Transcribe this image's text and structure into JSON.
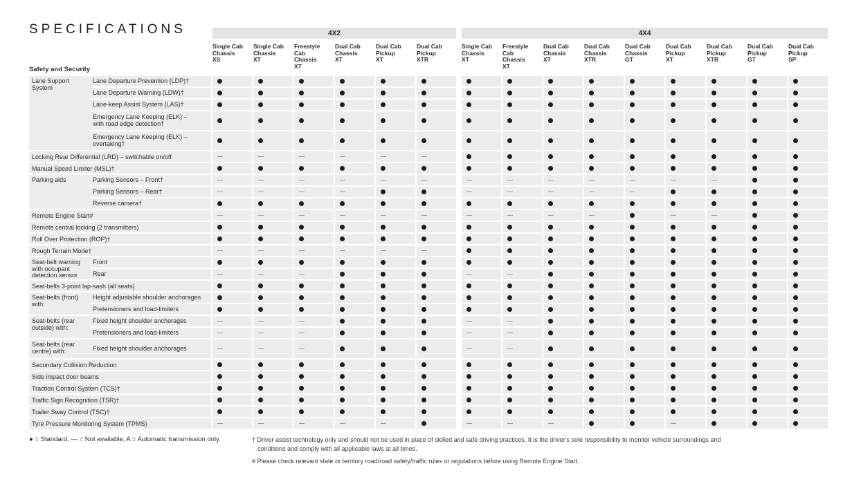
{
  "title": "SPECIFICATIONS",
  "section": "Safety and Security",
  "column_groups": [
    {
      "label": "4X2",
      "span": 6
    },
    {
      "label": "4X4",
      "span": 9
    }
  ],
  "columns": [
    "Single Cab\nChassis\nXS",
    "Single Cab\nChassis\nXT",
    "Freestyle\nCab\nChassis\nXT",
    "Dual Cab\nChassis\nXT",
    "Dual Cab\nPickup\nXT",
    "Dual Cab\nPickup\nXTR",
    "Single Cab\nChassis\nXT",
    "Freestyle\nCab\nChassis\nXT",
    "Dual Cab\nChassis\nXT",
    "Dual Cab\nChassis\nXTR",
    "Dual Cab\nChassis\nGT",
    "Dual Cab\nPickup\nXT",
    "Dual Cab\nPickup\nXTR",
    "Dual Cab\nPickup\nGT",
    "Dual Cab\nPickup\nSP"
  ],
  "symbols": {
    "standard": "●",
    "not_available": "—"
  },
  "colors": {
    "row_bg": "#ececec",
    "header_bar_bg": "#e3e3e3",
    "dot": "#1d1d1d",
    "dash": "#979797"
  },
  "groups": [
    {
      "label": "Lane Support\nSystem",
      "rows": [
        {
          "label": "Lane Departure Prevention (LDP)†",
          "v": "SSSSSSSSSSSSSSS"
        },
        {
          "label": "Lane Departure Warning (LDW)†",
          "v": "SSSSSSSSSSSSSSS"
        },
        {
          "label": "Lane-keep Assist System (LAS)†",
          "v": "SSSSSSSSSSSSSSS"
        },
        {
          "label": "Emergency Lane Keeping (ELK) –\nwith road edge detection†",
          "v": "SSSSSSSSSSSSSSS",
          "tall": true
        },
        {
          "label": "Emergency Lane Keeping (ELK) –\novertaking†",
          "v": "SSSSSSSSSSSSSSS",
          "tall": true
        }
      ]
    },
    {
      "label": null,
      "rows": [
        {
          "label": "Locking Rear Differential (LRD) – switchable on/off",
          "v": "NNNNNNSSSSSSSSS"
        }
      ]
    },
    {
      "label": null,
      "rows": [
        {
          "label": "Manual Speed Limiter (MSL)†",
          "v": "SSSSSSSSSSSSSSS"
        }
      ]
    },
    {
      "label": "Parking aids",
      "rows": [
        {
          "label": "Parking Sensors – Front†",
          "v": "NNNNNNNNNNNNNSS"
        },
        {
          "label": "Parking Sensors – Rear†",
          "v": "NNNNSSNNNNNSSSS"
        },
        {
          "label": "Reverse camera†",
          "v": "SSSSSSSSSSSSSSS"
        }
      ]
    },
    {
      "label": null,
      "rows": [
        {
          "label": "Remote Engine Start#",
          "v": "NNNNNNNNNNSNNSS"
        }
      ]
    },
    {
      "label": null,
      "rows": [
        {
          "label": "Remote central locking (2 transmitters)",
          "v": "SSSSSSSSSSSSSSS"
        }
      ]
    },
    {
      "label": null,
      "rows": [
        {
          "label": "Roll Over Protection (ROP)†",
          "v": "SSSSSSSSSSSSSSS"
        }
      ]
    },
    {
      "label": null,
      "rows": [
        {
          "label": "Rough Terrain Mode†",
          "v": "NNNNNNSSSSSSSSS"
        }
      ]
    },
    {
      "label": "Seat-belt warning\nwith occupant\ndetection sensor",
      "rows": [
        {
          "label": "Front",
          "v": "SSSSSSSSSSSSSSS"
        },
        {
          "label": "Rear",
          "v": "NNNSSSNNSSSSSSS"
        }
      ]
    },
    {
      "label": null,
      "rows": [
        {
          "label": "Seat-belts 3-point lap-sash (all seats)",
          "v": "SSSSSSSSSSSSSSS"
        }
      ]
    },
    {
      "label": "Seat-belts (front)\nwith:",
      "rows": [
        {
          "label": "Height adjustable shoulder anchorages",
          "v": "SSSSSSSSSSSSSSS"
        },
        {
          "label": "Pretensioners and load-limiters",
          "v": "SSSSSSSSSSSSSSS"
        }
      ]
    },
    {
      "label": "Seat-belts (rear\noutside) with:",
      "rows": [
        {
          "label": "Fixed height shoulder anchorages",
          "v": "NNNSSSNNSSSSSSS"
        },
        {
          "label": "Pretensioners and load-limiters",
          "v": "NNNSSSNNSSSSSSS"
        }
      ]
    },
    {
      "label": "Seat-belts (rear\ncentre) with:",
      "rows": [
        {
          "label": "Fixed height shoulder anchorages",
          "v": "NNNSSSNNSSSSSSS",
          "tall": true
        }
      ]
    },
    {
      "label": null,
      "rows": [
        {
          "label": "Secondary Collision Reduction",
          "v": "SSSSSSSSSSSSSSS"
        }
      ]
    },
    {
      "label": null,
      "rows": [
        {
          "label": "Side impact door beams",
          "v": "SSSSSSSSSSSSSSS"
        }
      ]
    },
    {
      "label": null,
      "rows": [
        {
          "label": "Traction Control System (TCS)†",
          "v": "SSSSSSSSSSSSSSS"
        }
      ]
    },
    {
      "label": null,
      "rows": [
        {
          "label": "Traffic Sign Recognition (TSR)†",
          "v": "SSSSSSSSSSSSSSS"
        }
      ]
    },
    {
      "label": null,
      "rows": [
        {
          "label": "Trailer Sway Control (TSC)†",
          "v": "SSSSSSSSSSSSSSS"
        }
      ]
    },
    {
      "label": null,
      "rows": [
        {
          "label": "Tyre Pressure Monitoring System (TPMS)",
          "v": "NNNNNSNNNSSNSSS"
        }
      ]
    }
  ],
  "legend": "● = Standard,  — = Not available, A = Automatic transmission only.",
  "footnotes": {
    "line1": "† Driver assist technology only and should not be used in place of skilled and safe driving practices. It is the driver's sole responsibility to monitor vehicle surroundings and",
    "line2": "conditions and comply with all applicable laws at all times.",
    "line3": "# Please check relevant state or territory road/road safety/traffic rules or regulations before using Remote Engine Start."
  }
}
